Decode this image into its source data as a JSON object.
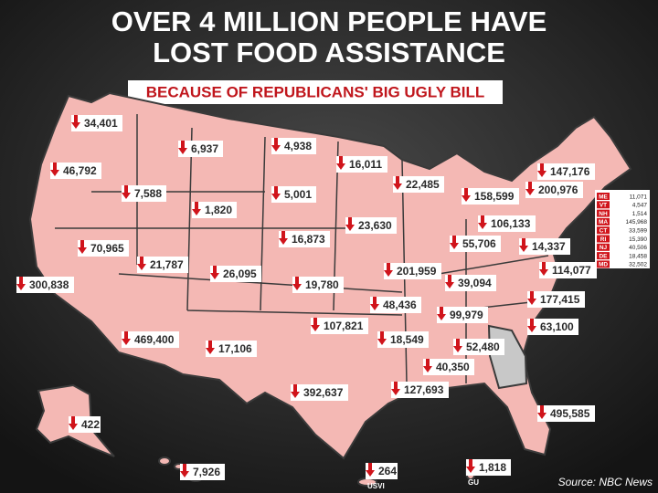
{
  "title": [
    "OVER 4 MILLION PEOPLE HAVE",
    "LOST FOOD ASSISTANCE"
  ],
  "subtitle": "BECAUSE OF REPUBLICANS' BIG UGLY BILL",
  "map_labels": [
    {
      "value": "34,401"
    },
    {
      "value": "46,792"
    },
    {
      "value": "300,838"
    },
    {
      "value": "70,965"
    },
    {
      "value": "7,588"
    },
    {
      "value": "6,937"
    },
    {
      "value": "1,820"
    },
    {
      "value": "21,787"
    },
    {
      "value": "469,400"
    },
    {
      "value": "26,095"
    },
    {
      "value": "17,106"
    },
    {
      "value": "4,938"
    },
    {
      "value": "5,001"
    },
    {
      "value": "16,873"
    },
    {
      "value": "19,780"
    },
    {
      "value": "107,821"
    },
    {
      "value": "392,637"
    },
    {
      "value": "16,011"
    },
    {
      "value": "23,630"
    },
    {
      "value": "48,436"
    },
    {
      "value": "18,549"
    },
    {
      "value": "127,693"
    },
    {
      "value": "22,485"
    },
    {
      "value": "201,959"
    },
    {
      "value": "40,350"
    },
    {
      "value": "158,599"
    },
    {
      "value": "55,706"
    },
    {
      "value": "39,094"
    },
    {
      "value": "99,979"
    },
    {
      "value": "52,480"
    },
    {
      "value": "106,133"
    },
    {
      "value": "14,337"
    },
    {
      "value": "114,077"
    },
    {
      "value": "177,415"
    },
    {
      "value": "63,100"
    },
    {
      "value": "495,585"
    },
    {
      "value": "200,976"
    },
    {
      "value": "147,176"
    },
    {
      "value": "422"
    },
    {
      "value": "7,926"
    },
    {
      "value": "264",
      "tag": "USVI"
    },
    {
      "value": "1,818",
      "tag": "GU"
    }
  ],
  "small_states": [
    {
      "abbr": "ME",
      "value": "11,071"
    },
    {
      "abbr": "VT",
      "value": "4,547"
    },
    {
      "abbr": "NH",
      "value": "1,514"
    },
    {
      "abbr": "MA",
      "value": "145,968"
    },
    {
      "abbr": "CT",
      "value": "33,599"
    },
    {
      "abbr": "RI",
      "value": "15,390"
    },
    {
      "abbr": "NJ",
      "value": "40,506"
    },
    {
      "abbr": "DE",
      "value": "18,458"
    },
    {
      "abbr": "MD",
      "value": "32,502"
    }
  ],
  "source": "Source: NBC News"
}
